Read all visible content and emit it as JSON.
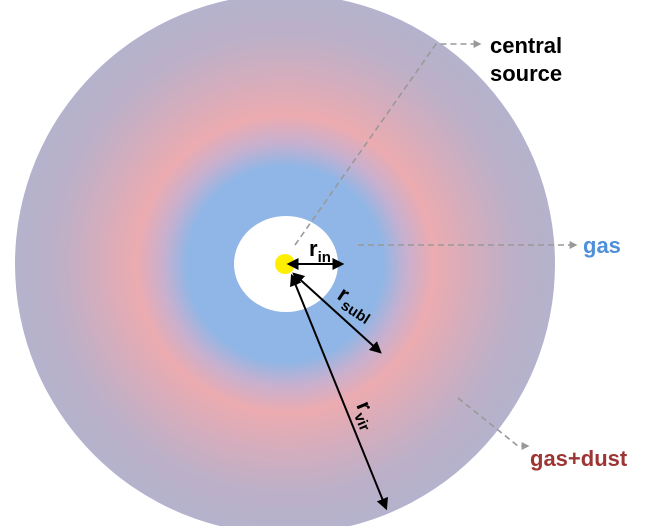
{
  "labels": {
    "central_source_line1": "central",
    "central_source_line2": "source",
    "gas": "gas",
    "gas_dust": "gas+dust"
  },
  "radii": {
    "r_in_main": "r",
    "r_in_sub": "in",
    "r_subl_main": "r",
    "r_subl_sub": "subl",
    "r_vir_main": "r",
    "r_vir_sub": "vir"
  },
  "colors": {
    "outer": "#b4b2cc",
    "dust_peak": "#ecabb0",
    "gas": "#8fb6e6",
    "cavity": "#ffffff",
    "source": "#ffee00",
    "gas_label": "#4f90d8",
    "gas_dust_label": "#9e3535",
    "pointer": "#999999"
  }
}
